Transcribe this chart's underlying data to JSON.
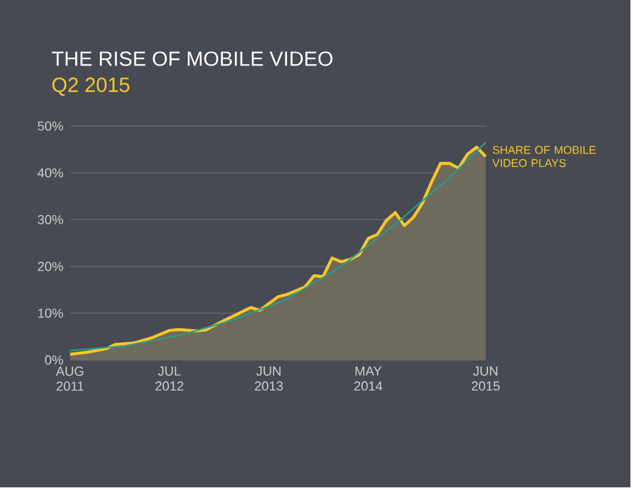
{
  "chart_data": {
    "type": "area",
    "title": "THE RISE OF MOBILE VIDEO",
    "subtitle": "Q2 2015",
    "x": [
      "2011-08",
      "2011-10",
      "2011-12",
      "2012-01",
      "2012-03",
      "2012-05",
      "2012-07",
      "2012-08",
      "2012-10",
      "2012-11",
      "2013-01",
      "2013-02",
      "2013-04",
      "2013-05",
      "2013-07",
      "2013-08",
      "2013-10",
      "2013-11",
      "2013-12",
      "2014-01",
      "2014-02",
      "2014-03",
      "2014-04",
      "2014-05",
      "2014-06",
      "2014-07",
      "2014-08",
      "2014-09",
      "2014-10",
      "2014-11",
      "2014-12",
      "2015-01",
      "2015-02",
      "2015-03",
      "2015-04",
      "2015-05",
      "2015-06"
    ],
    "series": [
      {
        "name": "SHARE OF MOBILE VIDEO PLAYS",
        "color": "#f5c82a",
        "values": [
          1.2,
          1.7,
          2.4,
          3.3,
          3.6,
          4.7,
          6.3,
          6.5,
          6.2,
          6.4,
          8.4,
          9.3,
          11.2,
          10.6,
          13.5,
          14.0,
          15.6,
          18.0,
          17.8,
          21.8,
          21.0,
          21.5,
          22.5,
          26.0,
          26.8,
          29.8,
          31.5,
          28.7,
          30.5,
          33.5,
          38.0,
          42.0,
          42.0,
          41.0,
          44.0,
          45.5,
          43.5
        ]
      },
      {
        "type": "line",
        "color": "#2a9d8f",
        "x": [
          "2011-08",
          "2012-02",
          "2012-08",
          "2013-02",
          "2013-08",
          "2014-02",
          "2014-08",
          "2015-02",
          "2015-06"
        ],
        "values": [
          2.0,
          3.0,
          5.2,
          8.5,
          13,
          20,
          29,
          39,
          46.5
        ]
      }
    ],
    "xlim": [
      "2011-08",
      "2015-06"
    ],
    "xticks": [
      {
        "value": "2011-08",
        "label": "AUG 2011"
      },
      {
        "value": "2012-07",
        "label": "JUL 2012"
      },
      {
        "value": "2013-06",
        "label": "JUN 2013"
      },
      {
        "value": "2014-05",
        "label": "MAY 2014"
      },
      {
        "value": "2015-06",
        "label": "JUN 2015"
      }
    ],
    "ylim": [
      0,
      50
    ],
    "yticks": [
      {
        "value": 0,
        "label": "0%"
      },
      {
        "value": 10,
        "label": "10%"
      },
      {
        "value": 20,
        "label": "20%"
      },
      {
        "value": 30,
        "label": "30%"
      },
      {
        "value": 40,
        "label": "40%"
      },
      {
        "value": 50,
        "label": "50%"
      }
    ],
    "grid": "y",
    "marker": "none",
    "line_style": "solid"
  }
}
